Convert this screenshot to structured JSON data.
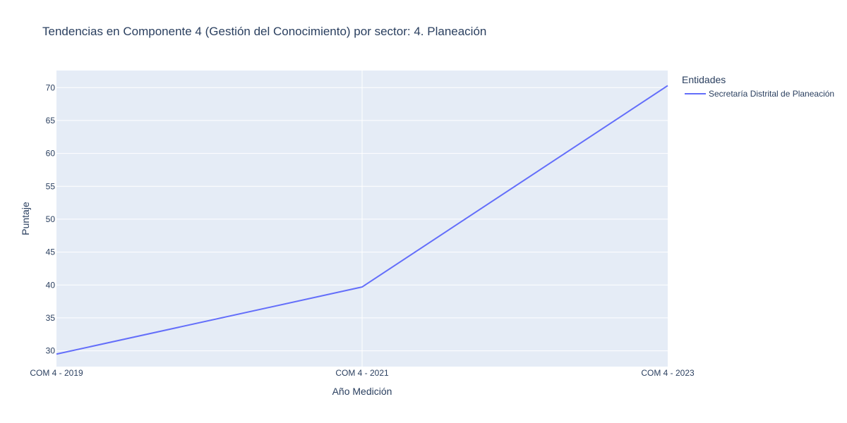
{
  "chart_data": {
    "type": "line",
    "title": "Tendencias en Componente 4 (Gestión del Conocimiento) por sector: 4. Planeación",
    "xlabel": "Año Medición",
    "ylabel": "Puntaje",
    "categories": [
      "COM 4 - 2019",
      "COM 4 - 2021",
      "COM 4 - 2023"
    ],
    "y_ticks": [
      30,
      35,
      40,
      45,
      50,
      55,
      60,
      65,
      70
    ],
    "ylim": [
      27.6,
      72.6
    ],
    "grid": true,
    "legend": {
      "title": "Entidades",
      "position": "right"
    },
    "series": [
      {
        "name": "Secretaría Distrital de Planeación",
        "color": "#636efa",
        "values": [
          29.5,
          39.7,
          70.3
        ]
      }
    ]
  },
  "colors": {
    "plot_background": "#e5ecf6",
    "grid": "#ffffff",
    "text": "#2a3f5f"
  }
}
